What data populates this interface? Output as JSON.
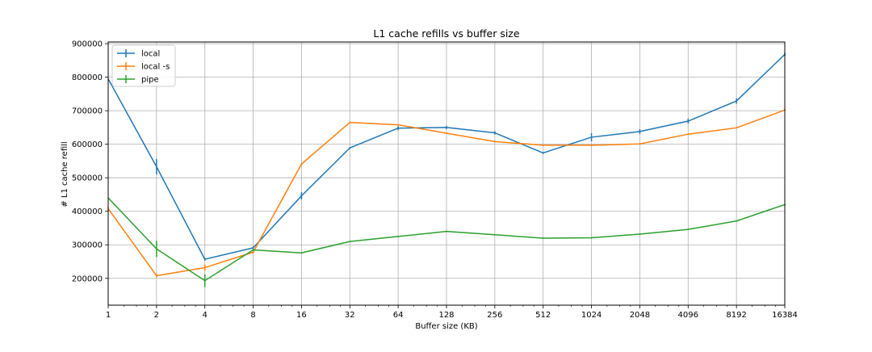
{
  "chart_data": {
    "type": "line",
    "title": "L1 cache refills vs buffer size",
    "xlabel": "Buffer size (KB)",
    "ylabel": "# L1 cache refill",
    "x_scale": "log2",
    "x": [
      1,
      2,
      4,
      8,
      16,
      32,
      64,
      128,
      256,
      512,
      1024,
      2048,
      4096,
      8192,
      16384
    ],
    "x_tick_labels": [
      "1",
      "2",
      "4",
      "8",
      "16",
      "32",
      "64",
      "128",
      "256",
      "512",
      "1024",
      "2048",
      "4096",
      "8192",
      "16384"
    ],
    "xlim": [
      1,
      16384
    ],
    "ylim": [
      120000,
      905000
    ],
    "y_ticks": [
      200000,
      300000,
      400000,
      500000,
      600000,
      700000,
      800000,
      900000
    ],
    "y_tick_labels": [
      "200000",
      "300000",
      "400000",
      "500000",
      "600000",
      "700000",
      "800000",
      "900000"
    ],
    "grid": true,
    "legend_position": "top-left",
    "series": [
      {
        "name": "local",
        "color": "#1f77b4",
        "values": [
          795000,
          533000,
          257000,
          291000,
          446000,
          589000,
          648000,
          650000,
          634000,
          574000,
          621000,
          638000,
          669000,
          729000,
          868000
        ],
        "errors": [
          0,
          23000,
          4000,
          4000,
          11000,
          3000,
          6000,
          5000,
          5000,
          3000,
          12000,
          7000,
          7000,
          8000,
          5000
        ]
      },
      {
        "name": "local -s",
        "color": "#ff7f0e",
        "values": [
          408000,
          208000,
          232000,
          278000,
          541000,
          665000,
          658000,
          633000,
          608000,
          597000,
          597000,
          601000,
          630000,
          649000,
          702000
        ],
        "errors": [
          6000,
          5000,
          9000,
          4000,
          3000,
          2000,
          2000,
          2000,
          2000,
          2000,
          3000,
          2000,
          2000,
          2000,
          3000
        ]
      },
      {
        "name": "pipe",
        "color": "#2ca02c",
        "values": [
          440000,
          288000,
          193000,
          285000,
          276000,
          310000,
          325000,
          340000,
          330000,
          320000,
          321000,
          332000,
          346000,
          371000,
          420000
        ],
        "errors": [
          0,
          24000,
          19000,
          3000,
          2000,
          2000,
          2000,
          2000,
          2000,
          2000,
          2000,
          2000,
          2000,
          2000,
          2000
        ]
      }
    ]
  }
}
